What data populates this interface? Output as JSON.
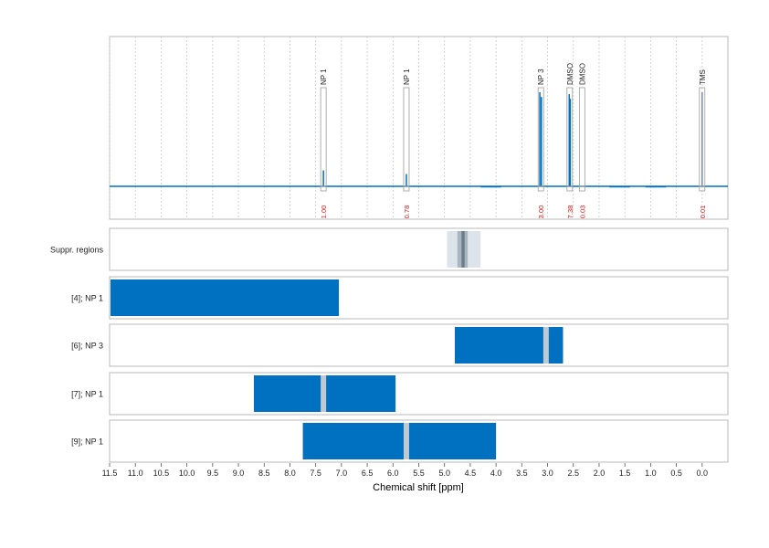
{
  "chart_data": {
    "type": "line",
    "xlabel": "Chemical shift [ppm]",
    "xlim": [
      11.5,
      -0.5
    ],
    "xticks": [
      "11.5",
      "11.0",
      "10.5",
      "10.0",
      "9.5",
      "9.0",
      "8.5",
      "8.0",
      "7.5",
      "7.0",
      "6.5",
      "6.0",
      "5.5",
      "5.0",
      "4.5",
      "4.0",
      "3.5",
      "3.0",
      "2.5",
      "2.0",
      "1.5",
      "1.0",
      "0.5",
      "0.0"
    ],
    "spectrum": {
      "grid": "vertical-dotted",
      "peaks": [
        {
          "ppm": 7.35,
          "height": 0.17
        },
        {
          "ppm": 5.74,
          "height": 0.13
        },
        {
          "ppm": 3.15,
          "height": 1.0
        },
        {
          "ppm": 3.12,
          "height": 0.95
        },
        {
          "ppm": 2.58,
          "height": 0.98
        },
        {
          "ppm": 2.56,
          "height": 0.93
        },
        {
          "ppm": 0.0,
          "height": 1.0
        }
      ],
      "annotations": [
        {
          "label": "NP 1",
          "ppm": 7.35,
          "integral": "1.00"
        },
        {
          "label": "NP 1",
          "ppm": 5.74,
          "integral": "0.78"
        },
        {
          "label": "NP 3",
          "ppm": 3.13,
          "integral": "3.00"
        },
        {
          "label": "DMSO",
          "ppm": 2.57,
          "integral": "7.38"
        },
        {
          "label": "DMSO",
          "ppm": 2.33,
          "integral": "0.03"
        },
        {
          "label": "TMS",
          "ppm": 0.0,
          "integral": "0.01"
        }
      ]
    },
    "region_rows": [
      {
        "label": "Suppr. regions",
        "type": "suppression",
        "outer": [
          4.95,
          4.3
        ],
        "inner": [
          4.75,
          4.55
        ],
        "core": [
          4.67,
          4.61
        ]
      },
      {
        "label": "[4]; NP 1",
        "type": "region",
        "range": [
          11.5,
          7.05
        ],
        "markers": []
      },
      {
        "label": "[6]; NP 3",
        "type": "region",
        "range": [
          4.8,
          2.7
        ],
        "markers": [
          3.03
        ]
      },
      {
        "label": "[7]; NP 1",
        "type": "region",
        "range": [
          8.7,
          5.95
        ],
        "markers": [
          7.35
        ]
      },
      {
        "label": "[9]; NP 1",
        "type": "region",
        "range": [
          7.75,
          4.0
        ],
        "markers": [
          5.74
        ]
      }
    ]
  },
  "colors": {
    "spectrum": "#0070c0",
    "region": "#0070c0",
    "marker": "#c0c8d0",
    "integral_text": "#e01010",
    "suppr_outer": "#dce3ea",
    "suppr_inner": "#a9b6c2",
    "suppr_core": "#6c7c8a"
  }
}
